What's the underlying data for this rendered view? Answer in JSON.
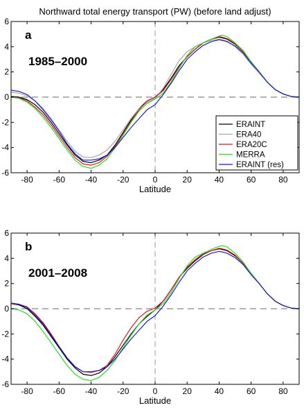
{
  "title": "Northward total energy transport (PW) (before land adjust)",
  "colors": {
    "ERAINT": "#000000",
    "ERA40": "#a6a6a6",
    "ERA20C": "#e0181b",
    "MERRA": "#22dd22",
    "ERAINT (res)": "#1a1acc",
    "zero_line": "#999999"
  },
  "chart_data": [
    {
      "type": "line",
      "panel": "a",
      "period": "1985–2000",
      "xlabel": "Latitude",
      "ylabel": "",
      "xlim": [
        -90,
        90
      ],
      "ylim": [
        -6,
        6
      ],
      "xticks": [
        -80,
        -60,
        -40,
        -20,
        0,
        20,
        40,
        60,
        80
      ],
      "yticks": [
        -6,
        -4,
        -2,
        0,
        2,
        4,
        6
      ],
      "legend": "bottom-right",
      "legend_entries": [
        "ERAINT",
        "ERA40",
        "ERA20C",
        "MERRA",
        "ERAINT (res)"
      ],
      "x": [
        -90,
        -85,
        -80,
        -75,
        -70,
        -65,
        -60,
        -55,
        -50,
        -45,
        -40,
        -35,
        -30,
        -25,
        -20,
        -15,
        -10,
        -5,
        0,
        5,
        10,
        15,
        20,
        25,
        30,
        35,
        40,
        42,
        45,
        50,
        55,
        60,
        65,
        70,
        75,
        80,
        85,
        90
      ],
      "series": [
        {
          "name": "ERAINT",
          "values": [
            0.05,
            0.0,
            -0.2,
            -0.6,
            -1.2,
            -2.0,
            -2.9,
            -3.8,
            -4.6,
            -5.1,
            -5.2,
            -5.0,
            -4.6,
            -3.8,
            -2.8,
            -1.8,
            -0.9,
            -0.3,
            0.0,
            0.6,
            1.5,
            2.5,
            3.2,
            3.8,
            4.3,
            4.6,
            4.75,
            4.7,
            4.6,
            4.2,
            3.6,
            2.8,
            2.0,
            1.2,
            0.6,
            0.25,
            0.05,
            0.0
          ]
        },
        {
          "name": "ERA40",
          "values": [
            0.4,
            0.3,
            0.1,
            -0.3,
            -0.9,
            -1.7,
            -2.6,
            -3.5,
            -4.3,
            -4.75,
            -4.8,
            -4.6,
            -4.2,
            -3.5,
            -2.6,
            -1.7,
            -0.9,
            -0.4,
            -0.1,
            0.7,
            1.8,
            2.9,
            3.6,
            4.0,
            4.3,
            4.5,
            4.6,
            4.55,
            4.45,
            4.0,
            3.4,
            2.6,
            1.9,
            1.2,
            0.6,
            0.25,
            0.05,
            0.0
          ]
        },
        {
          "name": "ERA20C",
          "values": [
            0.0,
            -0.05,
            -0.3,
            -0.8,
            -1.4,
            -2.2,
            -3.1,
            -4.0,
            -4.8,
            -5.3,
            -5.4,
            -5.2,
            -4.7,
            -3.9,
            -2.9,
            -1.9,
            -1.0,
            -0.3,
            0.0,
            0.5,
            1.4,
            2.4,
            3.2,
            3.8,
            4.3,
            4.6,
            4.8,
            4.75,
            4.65,
            4.25,
            3.6,
            2.8,
            2.0,
            1.2,
            0.6,
            0.25,
            0.05,
            0.0
          ]
        },
        {
          "name": "MERRA",
          "values": [
            0.0,
            -0.1,
            -0.4,
            -0.9,
            -1.6,
            -2.4,
            -3.3,
            -4.2,
            -5.0,
            -5.5,
            -5.65,
            -5.4,
            -4.9,
            -4.0,
            -3.0,
            -2.0,
            -1.1,
            -0.5,
            -0.15,
            0.3,
            1.2,
            2.3,
            3.3,
            4.0,
            4.3,
            4.6,
            4.85,
            4.9,
            4.8,
            4.3,
            3.7,
            2.8,
            2.0,
            1.2,
            0.6,
            0.25,
            0.05,
            0.0
          ]
        },
        {
          "name": "ERAINT (res)",
          "values": [
            0.55,
            0.45,
            0.2,
            -0.3,
            -1.0,
            -1.8,
            -2.7,
            -3.7,
            -4.5,
            -5.0,
            -5.0,
            -4.9,
            -4.6,
            -4.0,
            -3.2,
            -2.4,
            -1.7,
            -1.0,
            -0.6,
            0.2,
            1.1,
            2.1,
            3.0,
            3.6,
            4.1,
            4.4,
            4.55,
            4.5,
            4.4,
            4.05,
            3.5,
            2.7,
            2.0,
            1.2,
            0.6,
            0.25,
            0.05,
            0.0
          ]
        }
      ]
    },
    {
      "type": "line",
      "panel": "b",
      "period": "2001–2008",
      "xlabel": "Latitude",
      "ylabel": "",
      "xlim": [
        -90,
        90
      ],
      "ylim": [
        -6,
        6
      ],
      "xticks": [
        -80,
        -60,
        -40,
        -20,
        0,
        20,
        40,
        60,
        80
      ],
      "yticks": [
        -6,
        -4,
        -2,
        0,
        2,
        4,
        6
      ],
      "x": [
        -90,
        -85,
        -80,
        -75,
        -70,
        -65,
        -60,
        -55,
        -50,
        -45,
        -40,
        -35,
        -30,
        -25,
        -20,
        -15,
        -10,
        -5,
        0,
        5,
        10,
        15,
        20,
        25,
        30,
        35,
        40,
        42,
        45,
        50,
        55,
        60,
        65,
        70,
        75,
        80,
        85,
        90
      ],
      "series": [
        {
          "name": "ERAINT",
          "values": [
            0.4,
            0.3,
            0.0,
            -0.6,
            -1.3,
            -2.2,
            -3.1,
            -4.0,
            -4.7,
            -5.2,
            -5.3,
            -5.1,
            -4.6,
            -3.8,
            -2.9,
            -2.0,
            -1.2,
            -0.6,
            -0.1,
            0.6,
            1.5,
            2.5,
            3.2,
            3.8,
            4.3,
            4.6,
            4.75,
            4.7,
            4.6,
            4.2,
            3.6,
            2.8,
            2.0,
            1.2,
            0.6,
            0.25,
            0.05,
            0.0
          ]
        },
        {
          "name": "ERA20C",
          "values": [
            0.4,
            0.35,
            0.15,
            -0.4,
            -1.1,
            -2.0,
            -3.0,
            -3.9,
            -4.6,
            -5.0,
            -5.05,
            -4.9,
            -4.5,
            -3.6,
            -2.5,
            -1.5,
            -0.7,
            -0.2,
            0.05,
            0.6,
            1.5,
            2.5,
            3.3,
            3.9,
            4.35,
            4.6,
            4.8,
            4.75,
            4.65,
            4.25,
            3.6,
            2.8,
            2.0,
            1.2,
            0.6,
            0.25,
            0.05,
            0.0
          ]
        },
        {
          "name": "MERRA",
          "values": [
            0.0,
            -0.1,
            -0.4,
            -1.0,
            -1.8,
            -2.7,
            -3.6,
            -4.5,
            -5.2,
            -5.6,
            -5.7,
            -5.45,
            -4.9,
            -4.1,
            -3.1,
            -2.1,
            -1.2,
            -0.5,
            -0.1,
            0.4,
            1.3,
            2.4,
            3.4,
            4.1,
            4.4,
            4.7,
            4.95,
            5.0,
            4.9,
            4.4,
            3.7,
            2.8,
            2.0,
            1.2,
            0.6,
            0.25,
            0.05,
            0.0
          ]
        },
        {
          "name": "ERAINT (res)",
          "values": [
            0.45,
            0.35,
            0.1,
            -0.5,
            -1.2,
            -2.1,
            -3.0,
            -3.9,
            -4.6,
            -5.0,
            -5.0,
            -4.9,
            -4.6,
            -4.0,
            -3.2,
            -2.4,
            -1.7,
            -1.0,
            -0.55,
            0.2,
            1.1,
            2.1,
            3.0,
            3.6,
            4.1,
            4.4,
            4.55,
            4.5,
            4.4,
            4.05,
            3.5,
            2.7,
            2.0,
            1.2,
            0.6,
            0.25,
            0.05,
            0.0
          ]
        }
      ]
    }
  ]
}
